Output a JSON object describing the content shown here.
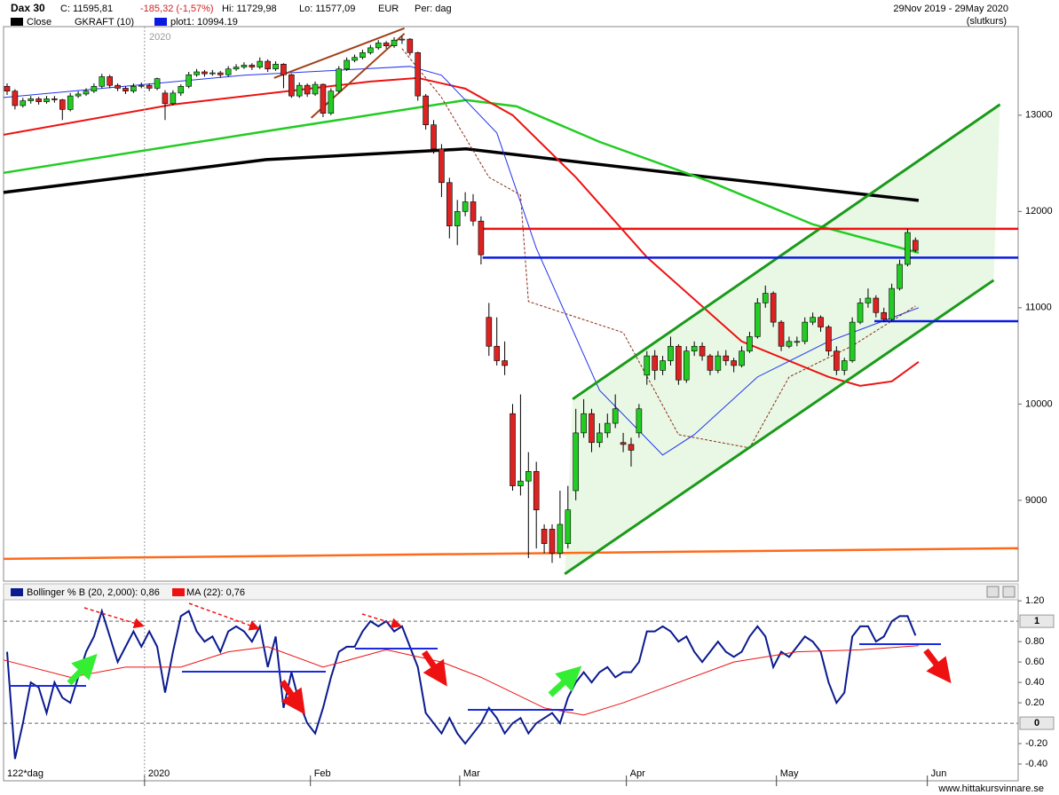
{
  "header": {
    "title": "Dax 30",
    "close": "C: 11595,81",
    "change": "-185,32 (-1,57%)",
    "high": "Hi: 11729,98",
    "low": "Lo: 11577,09",
    "currency": "EUR",
    "period": "Per: dag",
    "range": "29Nov 2019 - 29May 2020",
    "basis": "(slutkurs)"
  },
  "legend": [
    "Close",
    "GKRAFT (10)",
    "plot1: 10994.19"
  ],
  "footer": {
    "days": "122*dag",
    "site": "www.hittakursvinnare.se"
  },
  "chart_data": [
    {
      "type": "candlestick",
      "year_label": "2020",
      "up_color": "#22cc22",
      "down_color": "#dd2222",
      "xlim": [
        -0.45,
        128
      ],
      "ylim": [
        8160,
        13920
      ],
      "yticks": [
        9000,
        10000,
        11000,
        12000,
        13000
      ],
      "candles": [
        [
          13300,
          13330,
          13210,
          13250
        ],
        [
          13250,
          13270,
          13060,
          13100
        ],
        [
          13100,
          13180,
          13080,
          13150
        ],
        [
          13150,
          13200,
          13120,
          13170
        ],
        [
          13170,
          13190,
          13110,
          13140
        ],
        [
          13140,
          13200,
          13120,
          13170
        ],
        [
          13170,
          13200,
          13130,
          13160
        ],
        [
          13160,
          13170,
          12950,
          13060
        ],
        [
          13060,
          13230,
          13040,
          13200
        ],
        [
          13200,
          13250,
          13180,
          13220
        ],
        [
          13220,
          13280,
          13200,
          13250
        ],
        [
          13250,
          13330,
          13230,
          13300
        ],
        [
          13300,
          13430,
          13280,
          13400
        ],
        [
          13400,
          13420,
          13280,
          13310
        ],
        [
          13310,
          13330,
          13250,
          13280
        ],
        [
          13280,
          13300,
          13220,
          13250
        ],
        [
          13250,
          13330,
          13230,
          13300
        ],
        [
          13300,
          13340,
          13280,
          13310
        ],
        [
          13310,
          13330,
          13250,
          13280
        ],
        [
          13280,
          13390,
          13260,
          13380
        ],
        [
          13230,
          13260,
          12950,
          13120
        ],
        [
          13120,
          13260,
          13100,
          13230
        ],
        [
          13230,
          13320,
          13200,
          13300
        ],
        [
          13300,
          13450,
          13280,
          13420
        ],
        [
          13420,
          13480,
          13400,
          13450
        ],
        [
          13450,
          13470,
          13400,
          13430
        ],
        [
          13430,
          13470,
          13410,
          13440
        ],
        [
          13440,
          13460,
          13390,
          13420
        ],
        [
          13420,
          13510,
          13400,
          13480
        ],
        [
          13480,
          13530,
          13460,
          13500
        ],
        [
          13500,
          13550,
          13480,
          13520
        ],
        [
          13520,
          13540,
          13470,
          13500
        ],
        [
          13500,
          13600,
          13480,
          13560
        ],
        [
          13560,
          13580,
          13450,
          13480
        ],
        [
          13480,
          13560,
          13460,
          13530
        ],
        [
          13530,
          13540,
          13280,
          13420
        ],
        [
          13420,
          13430,
          13180,
          13200
        ],
        [
          13200,
          13340,
          13180,
          13310
        ],
        [
          13310,
          13330,
          13190,
          13220
        ],
        [
          13220,
          13350,
          13200,
          13320
        ],
        [
          13320,
          13330,
          12980,
          13020
        ],
        [
          13020,
          13280,
          13000,
          13250
        ],
        [
          13250,
          13510,
          13230,
          13480
        ],
        [
          13480,
          13600,
          13460,
          13570
        ],
        [
          13570,
          13630,
          13550,
          13600
        ],
        [
          13600,
          13680,
          13580,
          13650
        ],
        [
          13650,
          13730,
          13630,
          13700
        ],
        [
          13700,
          13780,
          13680,
          13750
        ],
        [
          13750,
          13770,
          13690,
          13720
        ],
        [
          13720,
          13810,
          13700,
          13780
        ],
        [
          13790,
          13820,
          13740,
          13790
        ],
        [
          13790,
          13800,
          13620,
          13650
        ],
        [
          13650,
          13660,
          13150,
          13200
        ],
        [
          13200,
          13220,
          12850,
          12900
        ],
        [
          12900,
          12950,
          12600,
          12650
        ],
        [
          12650,
          12700,
          12150,
          12300
        ],
        [
          12300,
          12350,
          11720,
          11850
        ],
        [
          11850,
          12120,
          11650,
          12000
        ],
        [
          12000,
          12200,
          11950,
          12100
        ],
        [
          12100,
          12180,
          11850,
          11900
        ],
        [
          11900,
          11950,
          11450,
          11550
        ],
        [
          10900,
          11050,
          10500,
          10600
        ],
        [
          10600,
          10900,
          10400,
          10450
        ],
        [
          10450,
          10650,
          10300,
          10400
        ],
        [
          9900,
          10000,
          9100,
          9150
        ],
        [
          9150,
          10100,
          9050,
          9200
        ],
        [
          9200,
          9500,
          8400,
          9300
        ],
        [
          9300,
          9400,
          8500,
          8900
        ],
        [
          8700,
          8750,
          8450,
          8550
        ],
        [
          8700,
          8750,
          8350,
          8450
        ],
        [
          8450,
          9100,
          8400,
          8750
        ],
        [
          8550,
          9150,
          8500,
          8900
        ],
        [
          9100,
          9950,
          9000,
          9700
        ],
        [
          9700,
          10050,
          9650,
          9900
        ],
        [
          9900,
          9950,
          9500,
          9600
        ],
        [
          9600,
          9800,
          9550,
          9700
        ],
        [
          9700,
          9900,
          9650,
          9800
        ],
        [
          9800,
          10100,
          9750,
          9950
        ],
        [
          9600,
          9700,
          9500,
          9580
        ],
        [
          9580,
          9650,
          9350,
          9520
        ],
        [
          9700,
          10000,
          9650,
          9950
        ],
        [
          10300,
          10550,
          10200,
          10500
        ],
        [
          10500,
          10560,
          10250,
          10350
        ],
        [
          10350,
          10500,
          10300,
          10450
        ],
        [
          10450,
          10700,
          10400,
          10600
        ],
        [
          10600,
          10620,
          10200,
          10250
        ],
        [
          10250,
          10600,
          10220,
          10550
        ],
        [
          10550,
          10650,
          10500,
          10600
        ],
        [
          10600,
          10640,
          10450,
          10500
        ],
        [
          10500,
          10520,
          10300,
          10350
        ],
        [
          10350,
          10550,
          10320,
          10500
        ],
        [
          10500,
          10560,
          10400,
          10450
        ],
        [
          10450,
          10480,
          10330,
          10400
        ],
        [
          10400,
          10600,
          10380,
          10550
        ],
        [
          10550,
          10750,
          10530,
          10700
        ],
        [
          10700,
          11100,
          10680,
          11050
        ],
        [
          11050,
          11230,
          11000,
          11150
        ],
        [
          11150,
          11170,
          10800,
          10850
        ],
        [
          10850,
          10870,
          10550,
          10600
        ],
        [
          10600,
          10700,
          10580,
          10650
        ],
        [
          10650,
          10700,
          10600,
          10650
        ],
        [
          10650,
          10900,
          10620,
          10850
        ],
        [
          10850,
          10950,
          10820,
          10900
        ],
        [
          10900,
          10920,
          10750,
          10800
        ],
        [
          10800,
          10820,
          10500,
          10550
        ],
        [
          10550,
          10600,
          10300,
          10350
        ],
        [
          10350,
          10480,
          10300,
          10450
        ],
        [
          10450,
          10900,
          10430,
          10850
        ],
        [
          10850,
          11100,
          10830,
          11050
        ],
        [
          11050,
          11200,
          11000,
          11100
        ],
        [
          11100,
          11130,
          10900,
          10950
        ],
        [
          10950,
          11000,
          10850,
          10880
        ],
        [
          10880,
          11250,
          10860,
          11200
        ],
        [
          11200,
          11500,
          11180,
          11450
        ],
        [
          11450,
          11820,
          11430,
          11781
        ],
        [
          11700,
          11729.98,
          11577.09,
          11595.81
        ]
      ],
      "band": {
        "color": "#e8f8e4",
        "x": [
          70.6,
          124.9,
          125.7,
          71.6
        ],
        "values": [
          8235,
          11286,
          13111,
          10051
        ]
      },
      "overlays": [
        {
          "color": "#ff6a1a",
          "width": 2.5,
          "x": [
            -0.45,
            128
          ],
          "values": [
            8392,
            8502
          ]
        },
        {
          "color": "#000000",
          "width": 3.5,
          "x": [
            -0.45,
            32.8,
            58.1,
            89,
            115.4
          ],
          "values": [
            12198,
            12539,
            12650,
            12355,
            12115
          ]
        },
        {
          "color": "#22cc22",
          "width": 2.5,
          "x": [
            -0.45,
            32.8,
            58.1,
            64.5,
            75,
            89,
            102,
            115.4
          ],
          "values": [
            12401,
            12834,
            13157,
            13092,
            12723,
            12309,
            11866,
            11571
          ]
        },
        {
          "color": "#ee1111",
          "width": 2,
          "x": [
            -0.45,
            21,
            46,
            52,
            58,
            64,
            72,
            81,
            93,
            104,
            108,
            112,
            115.4
          ],
          "values": [
            12797,
            13111,
            13350,
            13387,
            13276,
            13000,
            12355,
            11525,
            10650,
            10281,
            10189,
            10235,
            10438
          ]
        },
        {
          "color": "#2233ee",
          "width": 1,
          "x": [
            -0.45,
            30,
            51,
            55,
            62,
            67,
            75,
            83,
            87,
            95,
            104,
            115.4
          ],
          "values": [
            13184,
            13415,
            13507,
            13415,
            12816,
            11618,
            10143,
            9470,
            9682,
            10281,
            10650,
            11000
          ]
        },
        {
          "color": "#8b2a1a",
          "width": 1,
          "dash": "3,2",
          "x": [
            50,
            55,
            61,
            65,
            66,
            78,
            85,
            94,
            99,
            107,
            115
          ],
          "values": [
            13691,
            13184,
            12355,
            12171,
            11065,
            10742,
            9682,
            9544,
            10281,
            10604,
            11018
          ]
        },
        {
          "color": "#a0401a",
          "width": 2,
          "x": [
            33.8,
            50.3
          ],
          "values": [
            13387,
            13903
          ]
        },
        {
          "color": "#a0401a",
          "width": 2,
          "x": [
            38.5,
            50.3
          ],
          "values": [
            12972,
            13848
          ]
        },
        {
          "color": "#1a9a1a",
          "width": 3,
          "x": [
            70.6,
            124.9
          ],
          "values": [
            8235,
            11286
          ]
        },
        {
          "color": "#1a9a1a",
          "width": 3,
          "x": [
            71.6,
            125.7
          ],
          "values": [
            10051,
            13111
          ]
        },
        {
          "color": "#ee1111",
          "width": 2.5,
          "x": [
            60.2,
            128
          ],
          "values": [
            11820,
            11820
          ]
        },
        {
          "color": "#0a1adf",
          "width": 2.5,
          "x": [
            60.2,
            128
          ],
          "values": [
            11520,
            11520
          ]
        },
        {
          "color": "#0a1adf",
          "width": 2.5,
          "x": [
            109.8,
            128
          ],
          "values": [
            10860,
            10860
          ]
        }
      ]
    },
    {
      "type": "line",
      "xlim": [
        -0.45,
        128
      ],
      "ylim": [
        -0.565,
        1.21
      ],
      "yticks": [
        {
          "value": 1.2,
          "label": "1.20"
        },
        1,
        {
          "value": 0.8,
          "label": "0.80"
        },
        {
          "value": 0.6,
          "label": "0.60"
        },
        {
          "value": 0.4,
          "label": "0.40"
        },
        {
          "value": 0.2,
          "label": "0.20"
        },
        0,
        {
          "value": -0.2,
          "label": "-0.20"
        },
        {
          "value": -0.4,
          "label": "-0.40"
        }
      ],
      "xticks": [
        {
          "value": 17.4,
          "label": "2020"
        },
        {
          "value": 38.4,
          "label": "Feb"
        },
        {
          "value": 57.3,
          "label": "Mar"
        },
        {
          "value": 78.4,
          "label": "Apr"
        },
        {
          "value": 97.4,
          "label": "May"
        },
        {
          "value": 116.5,
          "label": "Jun"
        }
      ],
      "series": [
        {
          "name": "Bollinger % B (20, 2,000): 0,86",
          "color": "#0a1a8f",
          "values": [
            0.7,
            -0.35,
            0.0,
            0.4,
            0.35,
            0.1,
            0.4,
            0.25,
            0.2,
            0.45,
            0.7,
            0.85,
            1.1,
            0.85,
            0.6,
            0.75,
            0.9,
            0.75,
            0.9,
            0.75,
            0.3,
            0.7,
            1.05,
            1.1,
            0.9,
            0.8,
            0.85,
            0.7,
            0.9,
            0.95,
            0.9,
            0.8,
            0.95,
            0.55,
            0.85,
            0.15,
            0.5,
            0.2,
            0.0,
            -0.1,
            0.15,
            0.45,
            0.7,
            0.75,
            0.75,
            0.9,
            1.0,
            0.95,
            1.0,
            0.9,
            0.95,
            0.75,
            0.55,
            0.1,
            0.0,
            -0.1,
            0.05,
            -0.1,
            -0.2,
            -0.1,
            0.0,
            0.15,
            0.05,
            -0.1,
            0.0,
            0.05,
            -0.1,
            0.0,
            0.05,
            0.1,
            0.0,
            0.25,
            0.4,
            0.5,
            0.4,
            0.5,
            0.55,
            0.45,
            0.5,
            0.5,
            0.6,
            0.9,
            0.9,
            0.95,
            0.9,
            0.8,
            0.85,
            0.7,
            0.6,
            0.7,
            0.8,
            0.7,
            0.65,
            0.7,
            0.85,
            0.95,
            0.85,
            0.55,
            0.7,
            0.65,
            0.75,
            0.85,
            0.8,
            0.7,
            0.4,
            0.2,
            0.3,
            0.85,
            0.95,
            0.95,
            0.8,
            0.85,
            1.0,
            1.05,
            1.05,
            0.86
          ]
        },
        {
          "name": "MA (22): 0,76",
          "color": "#ee1111",
          "x": [
            -0.45,
            8,
            15,
            22,
            28,
            33,
            40,
            48,
            55,
            60,
            68,
            73,
            78,
            85,
            92,
            100,
            108,
            115.4
          ],
          "values": [
            0.62,
            0.45,
            0.55,
            0.55,
            0.7,
            0.75,
            0.55,
            0.72,
            0.6,
            0.45,
            0.15,
            0.08,
            0.2,
            0.4,
            0.6,
            0.7,
            0.72,
            0.76
          ]
        }
      ]
    }
  ]
}
